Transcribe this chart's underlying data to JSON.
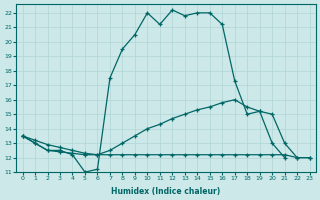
{
  "xlabel": "Humidex (Indice chaleur)",
  "bg_color": "#cce8e8",
  "grid_color": "#b0d4d4",
  "line_color": "#006666",
  "xlim": [
    -0.5,
    23.5
  ],
  "ylim": [
    11,
    22.6
  ],
  "xticks": [
    0,
    1,
    2,
    3,
    4,
    5,
    6,
    7,
    8,
    9,
    10,
    11,
    12,
    13,
    14,
    15,
    16,
    17,
    18,
    19,
    20,
    21,
    22,
    23
  ],
  "yticks": [
    11,
    12,
    13,
    14,
    15,
    16,
    17,
    18,
    19,
    20,
    21,
    22
  ],
  "line1_x": [
    0,
    1,
    2,
    3,
    4,
    5,
    6,
    7,
    8,
    9,
    10,
    11,
    12,
    13,
    14,
    15,
    16,
    17,
    18,
    19,
    20,
    21
  ],
  "line1_y": [
    13.5,
    13.0,
    12.5,
    12.5,
    12.2,
    11.0,
    11.2,
    17.5,
    19.5,
    20.5,
    22.0,
    21.2,
    22.2,
    21.8,
    22.0,
    22.0,
    21.2,
    17.3,
    15.0,
    15.2,
    13.0,
    12.0
  ],
  "line2_x": [
    0,
    1,
    2,
    3,
    4,
    5,
    6,
    7,
    8,
    9,
    10,
    11,
    12,
    13,
    14,
    15,
    16,
    17,
    18,
    19,
    20,
    21,
    22,
    23
  ],
  "line2_y": [
    13.5,
    13.2,
    12.9,
    12.7,
    12.5,
    12.3,
    12.2,
    12.5,
    13.0,
    13.5,
    14.0,
    14.3,
    14.7,
    15.0,
    15.3,
    15.5,
    15.8,
    16.0,
    15.5,
    15.2,
    15.0,
    13.0,
    12.0,
    12.0
  ],
  "line3_x": [
    0,
    1,
    2,
    3,
    4,
    5,
    6,
    7,
    8,
    9,
    10,
    11,
    12,
    13,
    14,
    15,
    16,
    17,
    18,
    19,
    20,
    21,
    22,
    23
  ],
  "line3_y": [
    13.5,
    13.0,
    12.5,
    12.4,
    12.3,
    12.2,
    12.2,
    12.2,
    12.2,
    12.2,
    12.2,
    12.2,
    12.2,
    12.2,
    12.2,
    12.2,
    12.2,
    12.2,
    12.2,
    12.2,
    12.2,
    12.2,
    12.0,
    12.0
  ]
}
